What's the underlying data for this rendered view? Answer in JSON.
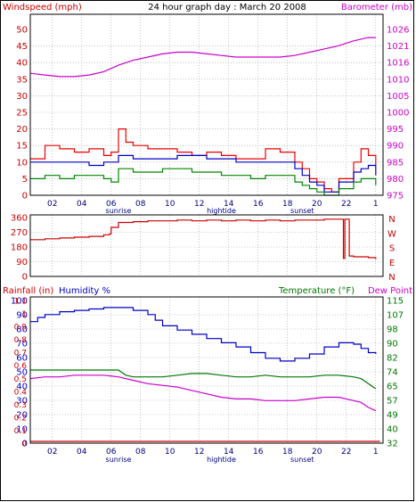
{
  "header": {
    "left_label": "Windspeed (mph)",
    "center_title": "24 hour graph day : March 20 2008",
    "right_label": "Barometer (mb)"
  },
  "colors": {
    "frame": "#000000",
    "wind_axis": "#cc0000",
    "baro_axis": "#cc00cc",
    "wind_gust": "#ee0000",
    "wind_avg": "#0000cc",
    "wind_speed": "#008800",
    "barometer": "#cc00cc",
    "direction": "#cc0000",
    "humidity": "#0000cc",
    "temperature": "#007700",
    "dewpoint": "#cc00cc",
    "rainfall": "#cc0000"
  },
  "x_axis": {
    "hour_ticks": [
      "02",
      "04",
      "06",
      "08",
      "10",
      "12",
      "14",
      "16",
      "18",
      "20",
      "22",
      "1"
    ],
    "events": [
      {
        "label": "sunrise",
        "hour": 6
      },
      {
        "label": "hightide",
        "hour": 13
      },
      {
        "label": "sunset",
        "hour": 18.5
      }
    ]
  },
  "chart_data": [
    {
      "type": "line",
      "name": "wind",
      "title": "24 hour graph day : March 20 2008",
      "ylabel_left": "Windspeed (mph)",
      "ylabel_right": "Barometer (mb)",
      "xlim": [
        0,
        24
      ],
      "ylim_left": [
        0,
        50
      ],
      "ylim_right": [
        975,
        1026
      ],
      "y_ticks_left": [
        "0",
        "5",
        "10",
        "15",
        "20",
        "25",
        "30",
        "35",
        "40",
        "45",
        "50"
      ],
      "y_ticks_right": [
        "975",
        "980",
        "985",
        "990",
        "995",
        "1000",
        "1005",
        "1010",
        "1016",
        "1021",
        "1026"
      ],
      "grid": true,
      "series": [
        {
          "key": "gust",
          "axis": "left",
          "x": [
            0,
            1,
            2,
            3,
            4,
            5,
            5.5,
            6,
            6.5,
            7,
            8,
            9,
            10,
            11,
            12,
            13,
            14,
            15,
            16,
            17,
            18,
            18.5,
            19,
            19.5,
            20,
            20.5,
            21,
            22,
            22.5,
            23,
            23.5
          ],
          "y": [
            11,
            15,
            14,
            13,
            14,
            12,
            13,
            20,
            16,
            15,
            14,
            14,
            13,
            12,
            13,
            12,
            11,
            11,
            14,
            13,
            10,
            8,
            5,
            4,
            2,
            1,
            5,
            10,
            14,
            12,
            9
          ]
        },
        {
          "key": "avg",
          "axis": "left",
          "x": [
            0,
            1,
            2,
            3,
            4,
            5,
            6,
            7,
            8,
            9,
            10,
            11,
            12,
            13,
            14,
            15,
            16,
            17,
            18,
            18.5,
            19,
            19.5,
            20,
            20.5,
            21,
            22,
            22.5,
            23,
            23.5
          ],
          "y": [
            10,
            10,
            10,
            10,
            9,
            10,
            12,
            11,
            11,
            11,
            12,
            12,
            11,
            11,
            10,
            10,
            10,
            10,
            8,
            6,
            4,
            3,
            1,
            1,
            4,
            7,
            8,
            9,
            6
          ]
        },
        {
          "key": "speed",
          "axis": "left",
          "x": [
            0,
            1,
            2,
            3,
            4,
            5,
            5.5,
            6,
            7,
            8,
            9,
            10,
            11,
            12,
            13,
            14,
            15,
            16,
            17,
            18,
            18.5,
            19,
            19.5,
            20,
            20.5,
            21,
            22,
            22.5,
            23,
            23.5
          ],
          "y": [
            5,
            6,
            5,
            6,
            6,
            5,
            4,
            8,
            7,
            7,
            8,
            8,
            7,
            7,
            6,
            6,
            5,
            6,
            6,
            4,
            3,
            2,
            1,
            0,
            0,
            2,
            4,
            5,
            5,
            3
          ]
        },
        {
          "key": "barometer",
          "axis": "right",
          "x": [
            0,
            1,
            2,
            3,
            4,
            5,
            6,
            7,
            8,
            9,
            10,
            11,
            12,
            13,
            14,
            15,
            16,
            17,
            18,
            19,
            20,
            21,
            22,
            23,
            23.5
          ],
          "y": [
            1012.5,
            1012,
            1011.5,
            1011.5,
            1012,
            1013,
            1015,
            1016.5,
            1017.5,
            1018.5,
            1019,
            1019,
            1018.5,
            1018,
            1017.5,
            1017.5,
            1017.5,
            1017.5,
            1018,
            1019,
            1020,
            1021,
            1022.5,
            1023.5,
            1023.5
          ]
        }
      ]
    },
    {
      "type": "line",
      "name": "direction",
      "xlim": [
        0,
        24
      ],
      "ylim": [
        0,
        360
      ],
      "y_ticks": [
        "0",
        "90",
        "180",
        "270",
        "360"
      ],
      "compass_labels": [
        "N",
        "W",
        "S",
        "E",
        "N"
      ],
      "grid": true,
      "series": [
        {
          "key": "wind_direction",
          "x": [
            0,
            1,
            2,
            3,
            4,
            5,
            5.4,
            5.5,
            6,
            7,
            8,
            9,
            10,
            11,
            12,
            13,
            14,
            15,
            16,
            17,
            18,
            19,
            20,
            21,
            21.3,
            21.4,
            21.7,
            22,
            22.5,
            23,
            23.5
          ],
          "y": [
            225,
            230,
            235,
            240,
            245,
            255,
            260,
            300,
            330,
            335,
            340,
            340,
            345,
            340,
            345,
            340,
            345,
            340,
            345,
            340,
            345,
            345,
            350,
            350,
            110,
            350,
            125,
            120,
            120,
            115,
            105
          ]
        }
      ]
    },
    {
      "type": "line",
      "name": "temperature-humidity",
      "ylabel_left_rain": "Rainfall (in)",
      "ylabel_left_humidity": "Humidity %",
      "ylabel_right_temp": "Temperature (°F)",
      "ylabel_right_dew": "Dew Point",
      "xlim": [
        0,
        24
      ],
      "ylim_humidity": [
        0,
        100
      ],
      "ylim_rain": [
        0,
        1.1
      ],
      "ylim_temp": [
        32,
        115
      ],
      "y_ticks_rain": [
        "0",
        "0.1",
        "0.2",
        "0.3",
        "0.4",
        "0.5",
        "0.6",
        "0.7",
        "0.8",
        "0.9",
        "1",
        "1.1"
      ],
      "y_ticks_humidity": [
        "0",
        "10",
        "20",
        "30",
        "40",
        "50",
        "60",
        "70",
        "80",
        "90",
        "100"
      ],
      "y_ticks_temp": [
        "32",
        "40",
        "49",
        "57",
        "65",
        "74",
        "82",
        "90",
        "98",
        "107",
        "115"
      ],
      "grid": true,
      "series": [
        {
          "key": "humidity",
          "axis": "humidity",
          "x": [
            0,
            0.5,
            1,
            2,
            3,
            4,
            5,
            6,
            7,
            8,
            8.5,
            9,
            10,
            11,
            12,
            13,
            14,
            15,
            16,
            17,
            18,
            19,
            20,
            21,
            22,
            22.5,
            23,
            23.5
          ],
          "y": [
            85,
            88,
            90,
            92,
            93,
            94,
            95,
            95,
            93,
            90,
            86,
            82,
            79,
            76,
            73,
            70,
            67,
            63,
            59,
            57,
            59,
            62,
            67,
            70,
            69,
            66,
            63,
            62
          ]
        },
        {
          "key": "temperature",
          "axis": "temp",
          "x": [
            0,
            1,
            2,
            3,
            4,
            5,
            6,
            6.5,
            7,
            8,
            9,
            10,
            11,
            12,
            13,
            14,
            15,
            16,
            17,
            18,
            19,
            20,
            21,
            22,
            22.5,
            23,
            23.5
          ],
          "y": [
            74,
            74,
            74,
            74,
            74,
            74,
            74,
            71,
            70,
            70,
            70,
            71,
            72,
            72,
            71,
            70,
            70,
            71,
            70,
            70,
            70,
            71,
            71,
            70,
            69,
            66,
            63
          ]
        },
        {
          "key": "dewpoint",
          "axis": "temp",
          "x": [
            0,
            1,
            2,
            3,
            4,
            5,
            6,
            7,
            8,
            9,
            10,
            11,
            12,
            13,
            14,
            15,
            16,
            17,
            18,
            19,
            20,
            21,
            22,
            22.5,
            23,
            23.5
          ],
          "y": [
            69,
            70,
            70,
            71,
            71,
            71,
            70,
            68,
            66,
            65,
            64,
            62,
            60,
            58,
            57,
            57,
            56,
            56,
            56,
            57,
            58,
            58,
            56,
            55,
            52,
            50
          ]
        },
        {
          "key": "rainfall",
          "axis": "rain",
          "x": [
            0,
            23.8
          ],
          "y": [
            0,
            0
          ]
        }
      ]
    }
  ]
}
